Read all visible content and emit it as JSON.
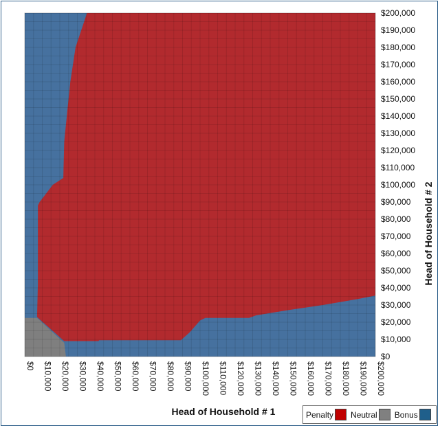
{
  "chart_data": {
    "type": "heatmap",
    "title": "",
    "xlabel": "Head of Household # 1",
    "ylabel": "Head of Household  # 2",
    "xlim": [
      0,
      200000
    ],
    "ylim": [
      0,
      200000
    ],
    "x_ticks": [
      "$0",
      "$10,000",
      "$20,000",
      "$30,000",
      "$40,000",
      "$50,000",
      "$60,000",
      "$70,000",
      "$80,000",
      "$90,000",
      "$100,000",
      "$110,000",
      "$120,000",
      "$130,000",
      "$140,000",
      "$150,000",
      "$160,000",
      "$170,000",
      "$180,000",
      "$190,000",
      "$200,000"
    ],
    "y_ticks": [
      "$0",
      "$10,000",
      "$20,000",
      "$30,000",
      "$40,000",
      "$50,000",
      "$60,000",
      "$70,000",
      "$80,000",
      "$90,000",
      "$100,000",
      "$110,000",
      "$120,000",
      "$130,000",
      "$140,000",
      "$150,000",
      "$160,000",
      "$170,000",
      "$180,000",
      "$190,000",
      "$200,000"
    ],
    "legend": [
      {
        "label": "Penalty",
        "color": "#c00000"
      },
      {
        "label": "Neutral",
        "color": "#808080"
      },
      {
        "label": "Bonus",
        "color": "#1f5f8b"
      }
    ],
    "legend_position": "bottom-right",
    "colors": {
      "penalty": "#b22a2e",
      "neutral": "#7f7f7f",
      "bonus": "#46719f"
    },
    "regions": {
      "penalty_upper_boundary": [
        [
          7500,
          88000
        ],
        [
          8500,
          90000
        ],
        [
          16000,
          100000
        ],
        [
          22000,
          104000
        ],
        [
          22500,
          125000
        ],
        [
          23500,
          135000
        ],
        [
          26000,
          160000
        ],
        [
          29000,
          180000
        ],
        [
          35500,
          200000
        ]
      ],
      "penalty_lower_boundary": [
        [
          7500,
          42000
        ],
        [
          7000,
          23000
        ],
        [
          22500,
          9000
        ],
        [
          42000,
          9000
        ],
        [
          42500,
          9500
        ],
        [
          89000,
          9500
        ],
        [
          94000,
          14000
        ],
        [
          100000,
          21000
        ],
        [
          103000,
          22500
        ],
        [
          128000,
          22500
        ],
        [
          132000,
          24000
        ],
        [
          150000,
          27000
        ],
        [
          170000,
          30000
        ],
        [
          190000,
          33500
        ],
        [
          200000,
          35500
        ]
      ],
      "neutral_polygon": [
        [
          0,
          0
        ],
        [
          0,
          22500
        ],
        [
          7000,
          22500
        ],
        [
          22500,
          8000
        ],
        [
          23500,
          0
        ]
      ]
    }
  }
}
